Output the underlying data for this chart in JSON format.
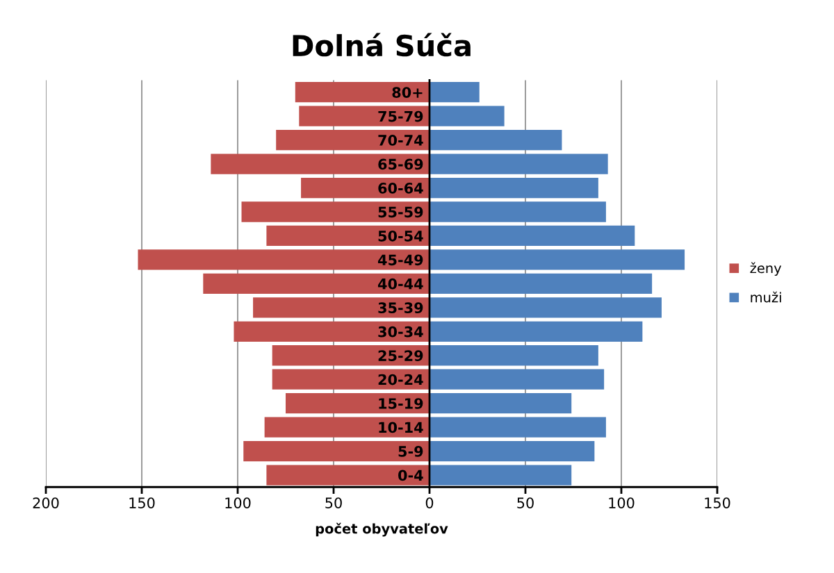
{
  "chart_data": {
    "type": "bar",
    "orientation": "horizontal",
    "title": "Dolná Súča",
    "xlabel": "počet obyvateľov",
    "categories": [
      "80+",
      "75-79",
      "70-74",
      "65-69",
      "60-64",
      "55-59",
      "50-54",
      "45-49",
      "40-44",
      "35-39",
      "30-34",
      "25-29",
      "20-24",
      "15-19",
      "10-14",
      "5-9",
      "0-4"
    ],
    "series": [
      {
        "name": "ženy",
        "color": "#c0504d",
        "values": [
          -70,
          -68,
          -80,
          -114,
          -67,
          -98,
          -85,
          -152,
          -118,
          -92,
          -102,
          -82,
          -82,
          -75,
          -86,
          -97,
          -85
        ]
      },
      {
        "name": "muži",
        "color": "#4f81bd",
        "values": [
          26,
          39,
          69,
          93,
          88,
          92,
          107,
          133,
          116,
          121,
          111,
          88,
          91,
          74,
          92,
          86,
          74
        ]
      }
    ],
    "xlim": [
      -200,
      150
    ],
    "xticks": [
      {
        "value": -200,
        "label": "200"
      },
      {
        "value": -150,
        "label": "150"
      },
      {
        "value": -100,
        "label": "100"
      },
      {
        "value": -50,
        "label": "50"
      },
      0,
      50,
      100,
      150
    ],
    "grid": "x",
    "legend": "right",
    "stacked": true
  }
}
